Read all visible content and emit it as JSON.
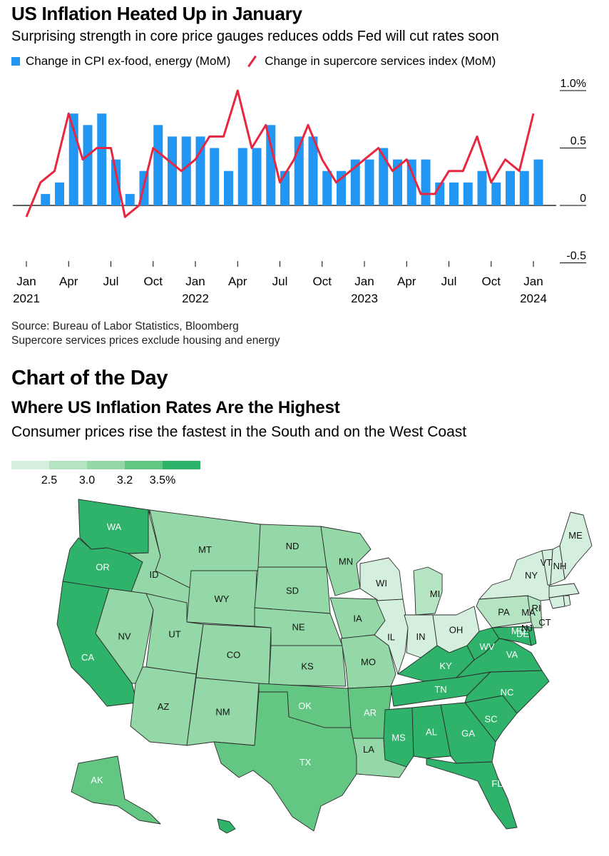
{
  "chart1": {
    "title": "US Inflation Heated Up in January",
    "subtitle": "Surprising strength in core price gauges reduces odds Fed will cut rates soon",
    "source_lines": [
      "Source: Bureau of Labor Statistics, Bloomberg",
      "Supercore services prices exclude housing and energy"
    ]
  },
  "chart_data": [
    {
      "type": "bar+line",
      "title": "US Inflation Heated Up in January",
      "subtitle": "Surprising strength in core price gauges reduces odds Fed will cut rates soon",
      "legend": [
        "Change in CPI ex-food, energy (MoM)",
        "Change in supercore services index (MoM)"
      ],
      "colors": {
        "bar": "#2196f3",
        "line": "#e8263f"
      },
      "x_labels": [
        "Jan 2021",
        "Feb 2021",
        "Mar 2021",
        "Apr 2021",
        "May 2021",
        "Jun 2021",
        "Jul 2021",
        "Aug 2021",
        "Sep 2021",
        "Oct 2021",
        "Nov 2021",
        "Dec 2021",
        "Jan 2022",
        "Feb 2022",
        "Mar 2022",
        "Apr 2022",
        "May 2022",
        "Jun 2022",
        "Jul 2022",
        "Aug 2022",
        "Sep 2022",
        "Oct 2022",
        "Nov 2022",
        "Dec 2022",
        "Jan 2023",
        "Feb 2023",
        "Mar 2023",
        "Apr 2023",
        "May 2023",
        "Jun 2023",
        "Jul 2023",
        "Aug 2023",
        "Sep 2023",
        "Oct 2023",
        "Nov 2023",
        "Dec 2023",
        "Jan 2024"
      ],
      "series": [
        {
          "name": "Change in CPI ex-food, energy (MoM)",
          "kind": "bar",
          "values": [
            0.0,
            0.1,
            0.2,
            0.8,
            0.7,
            0.8,
            0.4,
            0.1,
            0.3,
            0.7,
            0.6,
            0.6,
            0.6,
            0.5,
            0.3,
            0.5,
            0.5,
            0.7,
            0.3,
            0.6,
            0.6,
            0.3,
            0.3,
            0.4,
            0.4,
            0.5,
            0.4,
            0.4,
            0.4,
            0.2,
            0.2,
            0.2,
            0.3,
            0.2,
            0.3,
            0.3,
            0.4
          ]
        },
        {
          "name": "Change in supercore services index (MoM)",
          "kind": "line",
          "values": [
            -0.1,
            0.2,
            0.3,
            0.8,
            0.4,
            0.5,
            0.5,
            -0.1,
            0.0,
            0.5,
            0.4,
            0.3,
            0.4,
            0.6,
            0.6,
            1.0,
            0.5,
            0.7,
            0.2,
            0.4,
            0.7,
            0.4,
            0.2,
            0.3,
            0.4,
            0.5,
            0.3,
            0.4,
            0.1,
            0.1,
            0.3,
            0.3,
            0.6,
            0.2,
            0.4,
            0.3,
            0.8
          ]
        }
      ],
      "y_ticks": [
        "1.0%",
        "0.5",
        "0",
        "-0.5"
      ],
      "y_tick_values": [
        1.0,
        0.5,
        0.0,
        -0.5
      ],
      "ylim": [
        -0.5,
        1.0
      ],
      "x_ticks": [
        {
          "index": 0,
          "month": "Jan",
          "year": "2021"
        },
        {
          "index": 3,
          "month": "Apr",
          "year": ""
        },
        {
          "index": 6,
          "month": "Jul",
          "year": ""
        },
        {
          "index": 9,
          "month": "Oct",
          "year": ""
        },
        {
          "index": 12,
          "month": "Jan",
          "year": "2022"
        },
        {
          "index": 15,
          "month": "Apr",
          "year": ""
        },
        {
          "index": 18,
          "month": "Jul",
          "year": ""
        },
        {
          "index": 21,
          "month": "Oct",
          "year": ""
        },
        {
          "index": 24,
          "month": "Jan",
          "year": "2023"
        },
        {
          "index": 27,
          "month": "Apr",
          "year": ""
        },
        {
          "index": 30,
          "month": "Jul",
          "year": ""
        },
        {
          "index": 33,
          "month": "Oct",
          "year": ""
        },
        {
          "index": 36,
          "month": "Jan",
          "year": "2024"
        }
      ]
    },
    {
      "type": "choropleth",
      "header": "Chart of the Day",
      "title": "Where US Inflation Rates Are the Highest",
      "subtitle": "Consumer prices rise the fastest in the South and on the West Coast",
      "scale_labels": [
        "2.5",
        "3.0",
        "3.2",
        "3.5%"
      ],
      "scale_colors": [
        "#d4efdd",
        "#b5e4c3",
        "#93d8a6",
        "#63c683",
        "#2fb26a"
      ],
      "states": [
        {
          "id": "WA",
          "bin": 4
        },
        {
          "id": "OR",
          "bin": 4
        },
        {
          "id": "CA",
          "bin": 4
        },
        {
          "id": "ID",
          "bin": 2
        },
        {
          "id": "NV",
          "bin": 2
        },
        {
          "id": "MT",
          "bin": 2
        },
        {
          "id": "WY",
          "bin": 2
        },
        {
          "id": "UT",
          "bin": 2
        },
        {
          "id": "AZ",
          "bin": 2
        },
        {
          "id": "CO",
          "bin": 2
        },
        {
          "id": "NM",
          "bin": 2
        },
        {
          "id": "ND",
          "bin": 2
        },
        {
          "id": "SD",
          "bin": 2
        },
        {
          "id": "NE",
          "bin": 2
        },
        {
          "id": "KS",
          "bin": 2
        },
        {
          "id": "MN",
          "bin": 2
        },
        {
          "id": "IA",
          "bin": 2
        },
        {
          "id": "MO",
          "bin": 2
        },
        {
          "id": "OK",
          "bin": 3
        },
        {
          "id": "TX",
          "bin": 3
        },
        {
          "id": "AR",
          "bin": 3
        },
        {
          "id": "LA",
          "bin": 2
        },
        {
          "id": "WI",
          "bin": 0
        },
        {
          "id": "IL",
          "bin": 0
        },
        {
          "id": "MI",
          "bin": 1
        },
        {
          "id": "IN",
          "bin": 0
        },
        {
          "id": "OH",
          "bin": 0
        },
        {
          "id": "KY",
          "bin": 4
        },
        {
          "id": "TN",
          "bin": 4
        },
        {
          "id": "MS",
          "bin": 4
        },
        {
          "id": "AL",
          "bin": 4
        },
        {
          "id": "GA",
          "bin": 4
        },
        {
          "id": "FL",
          "bin": 4
        },
        {
          "id": "SC",
          "bin": 4
        },
        {
          "id": "NC",
          "bin": 4
        },
        {
          "id": "VA",
          "bin": 4
        },
        {
          "id": "WV",
          "bin": 4
        },
        {
          "id": "MD",
          "bin": 4
        },
        {
          "id": "DE",
          "bin": 4
        },
        {
          "id": "PA",
          "bin": 1
        },
        {
          "id": "NY",
          "bin": 0
        },
        {
          "id": "NJ",
          "bin": 1
        },
        {
          "id": "CT",
          "bin": 0
        },
        {
          "id": "RI",
          "bin": 0
        },
        {
          "id": "MA",
          "bin": 0
        },
        {
          "id": "VT",
          "bin": 0
        },
        {
          "id": "NH",
          "bin": 0
        },
        {
          "id": "ME",
          "bin": 0
        },
        {
          "id": "AK",
          "bin": 3
        },
        {
          "id": "HI",
          "bin": 4
        }
      ]
    }
  ],
  "chart2": {
    "header": "Chart of the Day",
    "title": "Where US Inflation Rates Are the Highest",
    "subtitle": "Consumer prices rise the fastest in the South and on the West Coast"
  }
}
